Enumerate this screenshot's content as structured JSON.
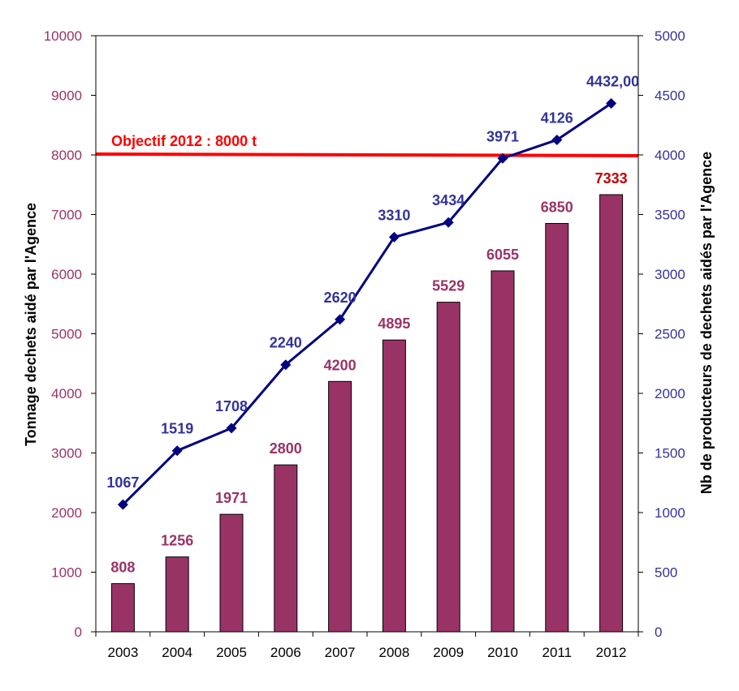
{
  "chart_data": {
    "type": "bar",
    "categories": [
      "2003",
      "2004",
      "2005",
      "2006",
      "2007",
      "2008",
      "2009",
      "2010",
      "2011",
      "2012"
    ],
    "series": [
      {
        "type": "bar",
        "axis": "left",
        "values": [
          808,
          1256,
          1971,
          2800,
          4200,
          4895,
          5529,
          6055,
          6850,
          7333
        ],
        "labels": [
          "808",
          "1256",
          "1971",
          "2800",
          "4200",
          "4895",
          "5529",
          "6055",
          "6850",
          "7333"
        ],
        "color": "#993366"
      },
      {
        "type": "line",
        "axis": "right",
        "values": [
          1067,
          1519,
          1708,
          2240,
          2620,
          3310,
          3434,
          3971,
          4126,
          4432
        ],
        "labels": [
          "1067",
          "1519",
          "1708",
          "2240",
          "2620",
          "3310",
          "3434",
          "3971",
          "4126",
          "4432,00"
        ],
        "color": "#000080"
      }
    ],
    "reference_line": {
      "value": 8000,
      "axis": "left",
      "label": "Objectif 2012 : 8000 t",
      "color": "#ff0000"
    },
    "ylabel_left": "Tonnage dechets aidé par l'Agence",
    "ylabel_right": "Nb de producteurs de dechets aidés par l'Agence",
    "ylim_left": [
      0,
      10000
    ],
    "ylim_right": [
      0,
      5000
    ],
    "yticks_left": [
      0,
      1000,
      2000,
      3000,
      4000,
      5000,
      6000,
      7000,
      8000,
      9000,
      10000
    ],
    "yticks_right": [
      0,
      500,
      1000,
      1500,
      2000,
      2500,
      3000,
      3500,
      4000,
      4500,
      5000
    ],
    "colors": {
      "left_axis_text": "#993366",
      "right_axis_text": "#333399",
      "line_label": "#333399",
      "bar_label": "#993366",
      "last_bar_label": "#c00000",
      "axis_line": "#000000"
    },
    "grid": false,
    "legend": "none"
  }
}
